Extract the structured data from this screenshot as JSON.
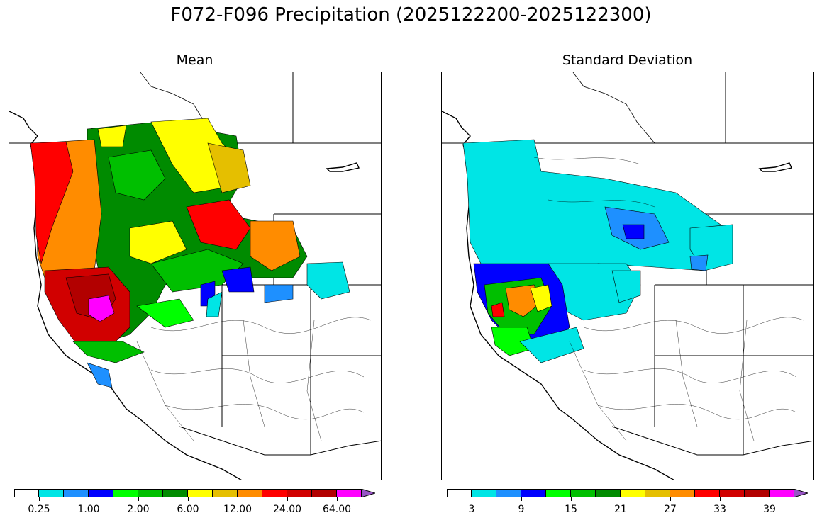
{
  "figure": {
    "title": "F072-F096 Precipitation (2025122200-2025122300)"
  },
  "panels": [
    {
      "subtitle": "Mean",
      "colorbar": {
        "colors": [
          "#ffffff",
          "#00e5e5",
          "#1e90ff",
          "#0000ff",
          "#00ff00",
          "#00bf00",
          "#008b00",
          "#ffff00",
          "#e5bf00",
          "#ff8c00",
          "#ff0000",
          "#d10000",
          "#b20000",
          "#ff00ff",
          "#9854c6"
        ],
        "tick_labels": [
          "0.25",
          "1.00",
          "2.00",
          "6.00",
          "12.00",
          "24.00",
          "64.00"
        ],
        "extend": "max"
      }
    },
    {
      "subtitle": "Standard Deviation",
      "colorbar": {
        "colors": [
          "#ffffff",
          "#00e5e5",
          "#1e90ff",
          "#0000ff",
          "#00ff00",
          "#00bf00",
          "#008b00",
          "#ffff00",
          "#e5bf00",
          "#ff8c00",
          "#ff0000",
          "#d10000",
          "#b20000",
          "#ff00ff",
          "#9854c6"
        ],
        "tick_labels": [
          "3",
          "9",
          "15",
          "21",
          "27",
          "33",
          "39"
        ],
        "extend": "max"
      }
    }
  ]
}
